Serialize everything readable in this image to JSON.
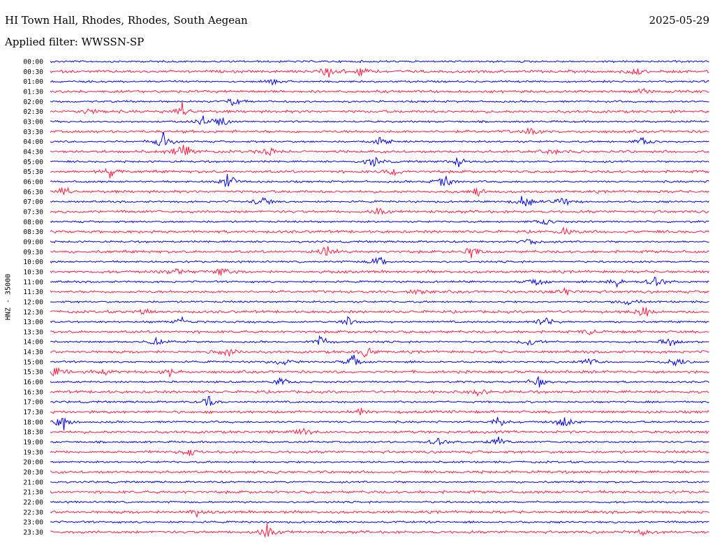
{
  "header": {
    "title": "HI Town Hall, Rhodes, Rhodes, South Aegean",
    "date": "2025-05-29",
    "filter": "Applied filter: WWSSN-SP"
  },
  "chart_data": {
    "type": "line",
    "ylabel": "HNZ - 35000",
    "colors": [
      "#0000e0",
      "#ff1a40"
    ],
    "grid": false,
    "legend": "none",
    "rows": [
      {
        "time": "00:00",
        "color": "#0000e0",
        "events": []
      },
      {
        "time": "00:30",
        "color": "#ff1a40",
        "events": [
          {
            "pos": 0.42,
            "amp": 0.6
          },
          {
            "pos": 0.47,
            "amp": 0.4
          },
          {
            "pos": 0.89,
            "amp": 0.35
          }
        ]
      },
      {
        "time": "01:00",
        "color": "#0000e0",
        "events": [
          {
            "pos": 0.34,
            "amp": 0.3
          }
        ]
      },
      {
        "time": "01:30",
        "color": "#ff1a40",
        "events": [
          {
            "pos": 0.9,
            "amp": 0.25
          }
        ]
      },
      {
        "time": "02:00",
        "color": "#0000e0",
        "events": [
          {
            "pos": 0.28,
            "amp": 0.45
          }
        ]
      },
      {
        "time": "02:30",
        "color": "#ff1a40",
        "events": [
          {
            "pos": 0.06,
            "amp": 0.3
          },
          {
            "pos": 0.2,
            "amp": 0.7
          }
        ]
      },
      {
        "time": "03:00",
        "color": "#0000e0",
        "events": [
          {
            "pos": 0.23,
            "amp": 0.5
          },
          {
            "pos": 0.26,
            "amp": 0.4
          }
        ]
      },
      {
        "time": "03:30",
        "color": "#ff1a40",
        "events": [
          {
            "pos": 0.73,
            "amp": 0.5
          }
        ]
      },
      {
        "time": "04:00",
        "color": "#0000e0",
        "events": [
          {
            "pos": 0.17,
            "amp": 0.8
          },
          {
            "pos": 0.5,
            "amp": 0.6
          },
          {
            "pos": 0.9,
            "amp": 0.4
          }
        ]
      },
      {
        "time": "04:30",
        "color": "#ff1a40",
        "events": [
          {
            "pos": 0.2,
            "amp": 0.9
          },
          {
            "pos": 0.33,
            "amp": 0.45
          },
          {
            "pos": 0.76,
            "amp": 0.35
          }
        ]
      },
      {
        "time": "05:00",
        "color": "#0000e0",
        "events": [
          {
            "pos": 0.49,
            "amp": 0.5
          },
          {
            "pos": 0.62,
            "amp": 0.5
          }
        ]
      },
      {
        "time": "05:30",
        "color": "#ff1a40",
        "events": [
          {
            "pos": 0.09,
            "amp": 0.5
          },
          {
            "pos": 0.52,
            "amp": 0.45
          }
        ]
      },
      {
        "time": "06:00",
        "color": "#0000e0",
        "events": [
          {
            "pos": 0.27,
            "amp": 0.7
          },
          {
            "pos": 0.6,
            "amp": 0.55
          }
        ]
      },
      {
        "time": "06:30",
        "color": "#ff1a40",
        "events": [
          {
            "pos": 0.02,
            "amp": 0.5
          },
          {
            "pos": 0.65,
            "amp": 0.35
          }
        ]
      },
      {
        "time": "07:00",
        "color": "#0000e0",
        "events": [
          {
            "pos": 0.32,
            "amp": 0.6
          },
          {
            "pos": 0.72,
            "amp": 0.7
          },
          {
            "pos": 0.78,
            "amp": 0.45
          }
        ]
      },
      {
        "time": "07:30",
        "color": "#ff1a40",
        "events": [
          {
            "pos": 0.5,
            "amp": 0.5
          }
        ]
      },
      {
        "time": "08:00",
        "color": "#0000e0",
        "events": [
          {
            "pos": 0.75,
            "amp": 0.3
          }
        ]
      },
      {
        "time": "08:30",
        "color": "#ff1a40",
        "events": [
          {
            "pos": 0.78,
            "amp": 0.3
          }
        ]
      },
      {
        "time": "09:00",
        "color": "#0000e0",
        "events": [
          {
            "pos": 0.73,
            "amp": 0.35
          }
        ]
      },
      {
        "time": "09:30",
        "color": "#ff1a40",
        "events": [
          {
            "pos": 0.42,
            "amp": 0.6
          },
          {
            "pos": 0.64,
            "amp": 0.55
          }
        ]
      },
      {
        "time": "10:00",
        "color": "#0000e0",
        "events": [
          {
            "pos": 0.5,
            "amp": 0.6
          }
        ]
      },
      {
        "time": "10:30",
        "color": "#ff1a40",
        "events": [
          {
            "pos": 0.19,
            "amp": 0.35
          },
          {
            "pos": 0.26,
            "amp": 0.4
          }
        ]
      },
      {
        "time": "11:00",
        "color": "#0000e0",
        "events": [
          {
            "pos": 0.74,
            "amp": 0.45
          },
          {
            "pos": 0.86,
            "amp": 0.45
          },
          {
            "pos": 0.92,
            "amp": 0.65
          }
        ]
      },
      {
        "time": "11:30",
        "color": "#ff1a40",
        "events": [
          {
            "pos": 0.56,
            "amp": 0.3
          },
          {
            "pos": 0.78,
            "amp": 0.4
          }
        ]
      },
      {
        "time": "12:00",
        "color": "#0000e0",
        "events": [
          {
            "pos": 0.88,
            "amp": 0.3
          }
        ]
      },
      {
        "time": "12:30",
        "color": "#ff1a40",
        "events": [
          {
            "pos": 0.14,
            "amp": 0.45
          },
          {
            "pos": 0.9,
            "amp": 0.5
          }
        ]
      },
      {
        "time": "13:00",
        "color": "#0000e0",
        "events": [
          {
            "pos": 0.2,
            "amp": 0.35
          },
          {
            "pos": 0.45,
            "amp": 0.4
          },
          {
            "pos": 0.75,
            "amp": 0.6
          }
        ]
      },
      {
        "time": "13:30",
        "color": "#ff1a40",
        "events": [
          {
            "pos": 0.82,
            "amp": 0.3
          }
        ]
      },
      {
        "time": "14:00",
        "color": "#0000e0",
        "events": [
          {
            "pos": 0.16,
            "amp": 0.35
          },
          {
            "pos": 0.41,
            "amp": 0.6
          },
          {
            "pos": 0.73,
            "amp": 0.45
          },
          {
            "pos": 0.94,
            "amp": 0.4
          }
        ]
      },
      {
        "time": "14:30",
        "color": "#ff1a40",
        "events": [
          {
            "pos": 0.27,
            "amp": 0.4
          },
          {
            "pos": 0.48,
            "amp": 0.55
          }
        ]
      },
      {
        "time": "15:00",
        "color": "#0000e0",
        "events": [
          {
            "pos": 0.35,
            "amp": 0.4
          },
          {
            "pos": 0.46,
            "amp": 0.55
          },
          {
            "pos": 0.82,
            "amp": 0.45
          },
          {
            "pos": 0.95,
            "amp": 0.65
          }
        ]
      },
      {
        "time": "15:30",
        "color": "#ff1a40",
        "events": [
          {
            "pos": 0.01,
            "amp": 0.8
          },
          {
            "pos": 0.08,
            "amp": 0.45
          },
          {
            "pos": 0.18,
            "amp": 0.4
          }
        ]
      },
      {
        "time": "16:00",
        "color": "#0000e0",
        "events": [
          {
            "pos": 0.35,
            "amp": 0.4
          },
          {
            "pos": 0.74,
            "amp": 0.45
          }
        ]
      },
      {
        "time": "16:30",
        "color": "#ff1a40",
        "events": [
          {
            "pos": 0.65,
            "amp": 0.3
          }
        ]
      },
      {
        "time": "17:00",
        "color": "#0000e0",
        "events": [
          {
            "pos": 0.24,
            "amp": 0.5
          }
        ]
      },
      {
        "time": "17:30",
        "color": "#ff1a40",
        "events": [
          {
            "pos": 0.47,
            "amp": 0.3
          }
        ]
      },
      {
        "time": "18:00",
        "color": "#0000e0",
        "events": [
          {
            "pos": 0.02,
            "amp": 0.7
          },
          {
            "pos": 0.68,
            "amp": 0.45
          },
          {
            "pos": 0.78,
            "amp": 0.6
          }
        ]
      },
      {
        "time": "18:30",
        "color": "#ff1a40",
        "events": [
          {
            "pos": 0.38,
            "amp": 0.35
          }
        ]
      },
      {
        "time": "19:00",
        "color": "#0000e0",
        "events": [
          {
            "pos": 0.59,
            "amp": 0.45
          },
          {
            "pos": 0.68,
            "amp": 0.5
          }
        ]
      },
      {
        "time": "19:30",
        "color": "#ff1a40",
        "events": [
          {
            "pos": 0.21,
            "amp": 0.4
          }
        ]
      },
      {
        "time": "20:00",
        "color": "#0000e0",
        "events": []
      },
      {
        "time": "20:30",
        "color": "#ff1a40",
        "events": []
      },
      {
        "time": "21:00",
        "color": "#0000e0",
        "events": []
      },
      {
        "time": "21:30",
        "color": "#ff1a40",
        "events": []
      },
      {
        "time": "22:00",
        "color": "#0000e0",
        "events": []
      },
      {
        "time": "22:30",
        "color": "#ff1a40",
        "events": [
          {
            "pos": 0.22,
            "amp": 0.35
          }
        ]
      },
      {
        "time": "23:00",
        "color": "#0000e0",
        "events": []
      },
      {
        "time": "23:30",
        "color": "#ff1a40",
        "events": [
          {
            "pos": 0.33,
            "amp": 0.9
          },
          {
            "pos": 0.9,
            "amp": 0.3
          }
        ]
      }
    ]
  }
}
